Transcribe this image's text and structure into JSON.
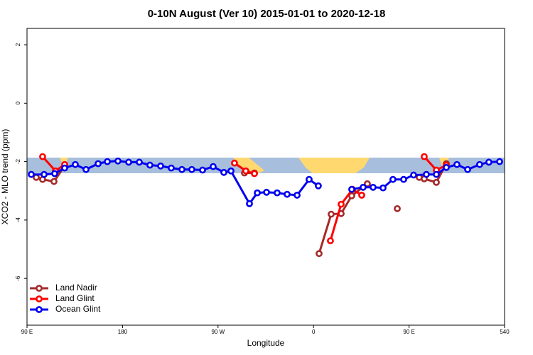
{
  "chart_data": {
    "type": "line",
    "title": "0-10N August (Ver 10)   2015-01-01 to 2020-12-18",
    "xlabel": "Longitude",
    "ylabel": "XCO2 - MLO trend (ppm)",
    "xlim": [
      90,
      540
    ],
    "ylim": [
      -7.6,
      2.56
    ],
    "xticks": [
      {
        "value": 90,
        "label": "90 E"
      },
      180,
      {
        "value": 270,
        "label": "90 W"
      },
      {
        "value": 360,
        "label": "0"
      },
      {
        "value": 450,
        "label": "90 E"
      },
      540
    ],
    "yticks": [
      -6,
      -4,
      -2,
      0,
      2
    ],
    "legend": "bottom-left",
    "series": [
      {
        "name": "Land Nadir",
        "color": "#a52a2a",
        "x": [
          98.7,
          104.7,
          115.4,
          125.5,
          null,
          294.9,
          304.3,
          null,
          365.2,
          376.6,
          386.0,
          396.0,
          410.7,
          null,
          438.9,
          null,
          459.6,
          464.3,
          475.7,
          485.1
        ],
        "values": [
          -2.54,
          -2.61,
          -2.68,
          -2.15,
          null,
          -2.39,
          -2.39,
          null,
          -5.15,
          -3.8,
          -3.78,
          -3.17,
          -2.76,
          null,
          -3.61,
          null,
          -2.54,
          -2.59,
          -2.71,
          -2.07
        ]
      },
      {
        "name": "Land Glint",
        "color": "#ff0000",
        "x": [
          104.7,
          116.8,
          125.5,
          null,
          285.5,
          296.2,
          304.3,
          null,
          375.9,
          386.0,
          396.7,
          405.4,
          null,
          464.3,
          475.7,
          485.1
        ],
        "values": [
          -1.83,
          -2.32,
          -2.1,
          null,
          -2.05,
          -2.32,
          -2.41,
          null,
          -4.71,
          -3.46,
          -2.95,
          -3.15,
          null,
          -1.83,
          -2.29,
          -2.12
        ]
      },
      {
        "name": "Ocean Glint",
        "color": "#0000ee",
        "x": [
          94.0,
          106.1,
          116.1,
          125.5,
          135.5,
          145.6,
          157.0,
          165.7,
          175.7,
          185.8,
          195.8,
          205.8,
          215.9,
          225.9,
          236.0,
          245.3,
          255.4,
          265.4,
          275.5,
          282.2,
          299.6,
          307.0,
          315.7,
          325.7,
          335.1,
          344.5,
          355.8,
          364.5,
          null,
          396.0,
          406.7,
          416.1,
          425.5,
          434.8,
          444.9,
          454.3,
          466.3,
          475.7,
          485.1,
          495.1,
          505.2,
          516.5,
          525.2,
          535.3
        ],
        "values": [
          -2.44,
          -2.44,
          -2.41,
          -2.22,
          -2.1,
          -2.27,
          -2.07,
          -2.0,
          -1.98,
          -2.02,
          -2.02,
          -2.12,
          -2.15,
          -2.22,
          -2.27,
          -2.27,
          -2.29,
          -2.17,
          -2.37,
          -2.32,
          -3.44,
          -3.07,
          -3.05,
          -3.07,
          -3.12,
          -3.15,
          -2.61,
          -2.83,
          null,
          -2.95,
          -2.88,
          -2.88,
          -2.9,
          -2.61,
          -2.61,
          -2.46,
          -2.44,
          -2.44,
          -2.2,
          -2.1,
          -2.27,
          -2.1,
          -2.02,
          -2.0
        ]
      }
    ]
  }
}
